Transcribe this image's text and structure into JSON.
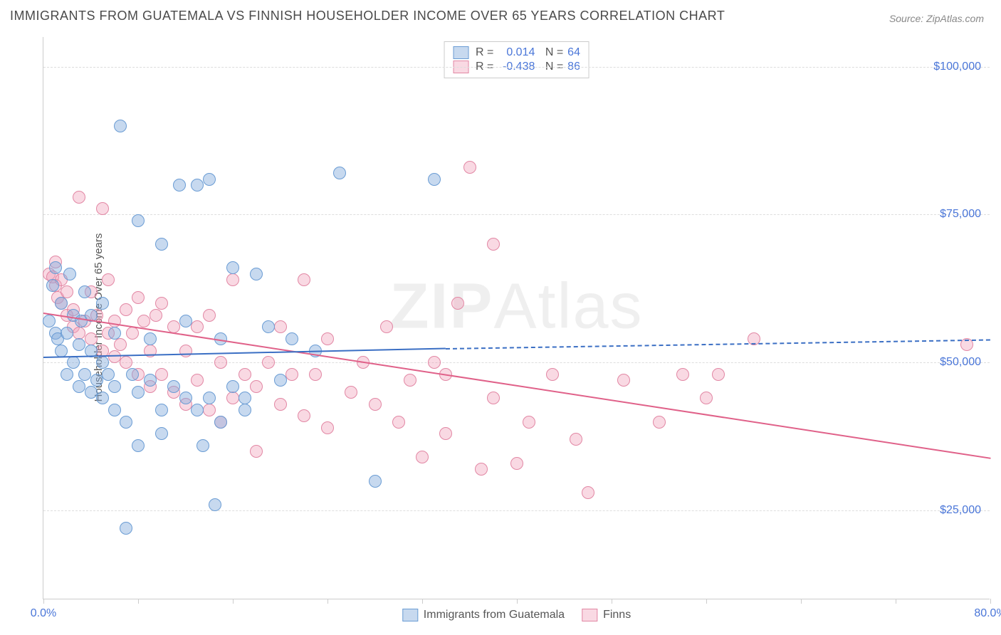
{
  "chart": {
    "title": "IMMIGRANTS FROM GUATEMALA VS FINNISH HOUSEHOLDER INCOME OVER 65 YEARS CORRELATION CHART",
    "source_label": "Source:",
    "source_name": "ZipAtlas.com",
    "ylabel": "Householder Income Over 65 years",
    "watermark_a": "ZIP",
    "watermark_b": "Atlas",
    "type": "scatter",
    "xlim": [
      0,
      80
    ],
    "ylim": [
      10000,
      105000
    ],
    "x_ticks": [
      0,
      8,
      16,
      24,
      32,
      40,
      48,
      56,
      64,
      72,
      80
    ],
    "x_tick_labels": {
      "0": "0.0%",
      "80": "80.0%"
    },
    "y_gridlines": [
      25000,
      50000,
      75000,
      100000
    ],
    "y_tick_labels": {
      "25000": "$25,000",
      "50000": "$50,000",
      "75000": "$75,000",
      "100000": "$100,000"
    },
    "background_color": "#ffffff",
    "grid_color": "#dddddd",
    "axis_color": "#cccccc",
    "label_color": "#4a76d8",
    "marker_radius": 9,
    "series": [
      {
        "id": "guatemala",
        "label": "Immigrants from Guatemala",
        "fill": "rgba(130,170,220,0.45)",
        "stroke": "#6a9cd4",
        "line_color": "#3b6fc4",
        "R": "0.014",
        "N": "64",
        "trend": {
          "x1": 0,
          "y1": 51000,
          "x2": 34,
          "y2": 52500,
          "x2_ext": 80,
          "y2_ext": 54000
        },
        "points": [
          [
            0.5,
            57000
          ],
          [
            0.8,
            63000
          ],
          [
            1,
            55000
          ],
          [
            1,
            66000
          ],
          [
            1.2,
            54000
          ],
          [
            1.5,
            52000
          ],
          [
            1.5,
            60000
          ],
          [
            2,
            48000
          ],
          [
            2,
            55000
          ],
          [
            2.2,
            65000
          ],
          [
            2.5,
            50000
          ],
          [
            2.5,
            58000
          ],
          [
            3,
            46000
          ],
          [
            3,
            53000
          ],
          [
            3.2,
            57000
          ],
          [
            3.5,
            48000
          ],
          [
            3.5,
            62000
          ],
          [
            4,
            45000
          ],
          [
            4,
            52000
          ],
          [
            4,
            58000
          ],
          [
            4.5,
            47000
          ],
          [
            5,
            44000
          ],
          [
            5,
            50000
          ],
          [
            5,
            60000
          ],
          [
            5.5,
            48000
          ],
          [
            6,
            42000
          ],
          [
            6,
            55000
          ],
          [
            6,
            46000
          ],
          [
            6.5,
            90000
          ],
          [
            7,
            22000
          ],
          [
            7,
            40000
          ],
          [
            7.5,
            48000
          ],
          [
            8,
            36000
          ],
          [
            8,
            45000
          ],
          [
            8,
            74000
          ],
          [
            9,
            54000
          ],
          [
            9,
            47000
          ],
          [
            10,
            42000
          ],
          [
            10,
            70000
          ],
          [
            10,
            38000
          ],
          [
            11,
            46000
          ],
          [
            11.5,
            80000
          ],
          [
            12,
            44000
          ],
          [
            12,
            57000
          ],
          [
            13,
            42000
          ],
          [
            13,
            80000
          ],
          [
            13.5,
            36000
          ],
          [
            14,
            44000
          ],
          [
            14,
            81000
          ],
          [
            14.5,
            26000
          ],
          [
            15,
            40000
          ],
          [
            15,
            54000
          ],
          [
            16,
            46000
          ],
          [
            16,
            66000
          ],
          [
            17,
            44000
          ],
          [
            17,
            42000
          ],
          [
            18,
            65000
          ],
          [
            19,
            56000
          ],
          [
            20,
            47000
          ],
          [
            21,
            54000
          ],
          [
            23,
            52000
          ],
          [
            25,
            82000
          ],
          [
            28,
            30000
          ],
          [
            33,
            81000
          ]
        ]
      },
      {
        "id": "finns",
        "label": "Finns",
        "fill": "rgba(240,160,185,0.40)",
        "stroke": "#e287a4",
        "line_color": "#e06189",
        "R": "-0.438",
        "N": "86",
        "trend": {
          "x1": 0,
          "y1": 58500,
          "x2": 80,
          "y2": 34000
        },
        "points": [
          [
            0.5,
            65000
          ],
          [
            0.8,
            64500
          ],
          [
            1,
            63000
          ],
          [
            1,
            67000
          ],
          [
            1.2,
            61000
          ],
          [
            1.5,
            60000
          ],
          [
            1.5,
            64000
          ],
          [
            2,
            58000
          ],
          [
            2,
            62000
          ],
          [
            2.5,
            56000
          ],
          [
            2.5,
            59000
          ],
          [
            3,
            78000
          ],
          [
            3,
            55000
          ],
          [
            3.5,
            57000
          ],
          [
            4,
            54000
          ],
          [
            4,
            62000
          ],
          [
            4.5,
            58000
          ],
          [
            5,
            76000
          ],
          [
            5,
            52000
          ],
          [
            5.5,
            55000
          ],
          [
            5.5,
            64000
          ],
          [
            6,
            51000
          ],
          [
            6,
            57000
          ],
          [
            6.5,
            53000
          ],
          [
            7,
            50000
          ],
          [
            7,
            59000
          ],
          [
            7.5,
            55000
          ],
          [
            8,
            48000
          ],
          [
            8,
            61000
          ],
          [
            8.5,
            57000
          ],
          [
            9,
            46000
          ],
          [
            9,
            52000
          ],
          [
            9.5,
            58000
          ],
          [
            10,
            48000
          ],
          [
            10,
            60000
          ],
          [
            11,
            45000
          ],
          [
            11,
            56000
          ],
          [
            12,
            43000
          ],
          [
            12,
            52000
          ],
          [
            13,
            47000
          ],
          [
            13,
            56000
          ],
          [
            14,
            42000
          ],
          [
            14,
            58000
          ],
          [
            15,
            40000
          ],
          [
            15,
            50000
          ],
          [
            16,
            44000
          ],
          [
            16,
            64000
          ],
          [
            17,
            48000
          ],
          [
            18,
            46000
          ],
          [
            18,
            35000
          ],
          [
            19,
            50000
          ],
          [
            20,
            43000
          ],
          [
            20,
            56000
          ],
          [
            21,
            48000
          ],
          [
            22,
            41000
          ],
          [
            22,
            64000
          ],
          [
            23,
            48000
          ],
          [
            24,
            39000
          ],
          [
            24,
            54000
          ],
          [
            26,
            45000
          ],
          [
            27,
            50000
          ],
          [
            28,
            43000
          ],
          [
            29,
            56000
          ],
          [
            30,
            40000
          ],
          [
            31,
            47000
          ],
          [
            32,
            34000
          ],
          [
            33,
            50000
          ],
          [
            34,
            48000
          ],
          [
            34,
            38000
          ],
          [
            35,
            60000
          ],
          [
            36,
            83000
          ],
          [
            37,
            32000
          ],
          [
            38,
            44000
          ],
          [
            38,
            70000
          ],
          [
            40,
            33000
          ],
          [
            41,
            40000
          ],
          [
            43,
            48000
          ],
          [
            45,
            37000
          ],
          [
            46,
            28000
          ],
          [
            49,
            47000
          ],
          [
            52,
            40000
          ],
          [
            54,
            48000
          ],
          [
            56,
            44000
          ],
          [
            57,
            48000
          ],
          [
            60,
            54000
          ],
          [
            78,
            53000
          ]
        ]
      }
    ]
  }
}
